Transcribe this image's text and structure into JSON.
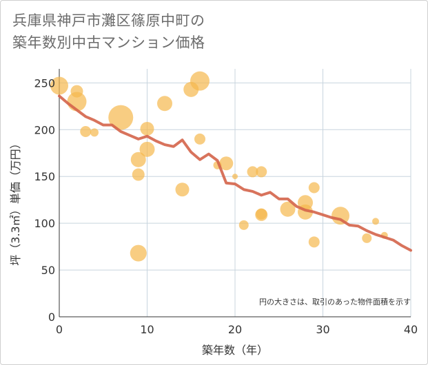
{
  "title_lines": [
    "兵庫県神戸市灘区篠原中町の",
    "築年数別中古マンション価格"
  ],
  "chart_data": {
    "type": "scatter",
    "xlabel": "築年数（年）",
    "ylabel": "坪（3.3㎡）単価（万円）",
    "xlim": [
      0,
      40
    ],
    "ylim": [
      0,
      265
    ],
    "x_ticks": [
      0,
      10,
      20,
      30,
      40
    ],
    "y_ticks": [
      0,
      50,
      100,
      150,
      200,
      250
    ],
    "grid": true,
    "note": "円の大きさは、取引のあった物件面積を示す",
    "colors": {
      "bubble": "#f5b84d",
      "trend": "#d4644a",
      "grid": "#c8d4de"
    },
    "points": [
      {
        "x": 0,
        "y": 247,
        "r": 13
      },
      {
        "x": 2,
        "y": 241,
        "r": 9
      },
      {
        "x": 2,
        "y": 230,
        "r": 14
      },
      {
        "x": 3,
        "y": 198,
        "r": 8
      },
      {
        "x": 4,
        "y": 197,
        "r": 6
      },
      {
        "x": 7,
        "y": 213,
        "r": 18
      },
      {
        "x": 9,
        "y": 168,
        "r": 11
      },
      {
        "x": 9,
        "y": 152,
        "r": 9
      },
      {
        "x": 9,
        "y": 68,
        "r": 12
      },
      {
        "x": 10,
        "y": 201,
        "r": 10
      },
      {
        "x": 10,
        "y": 179,
        "r": 11
      },
      {
        "x": 12,
        "y": 228,
        "r": 11
      },
      {
        "x": 14,
        "y": 136,
        "r": 10
      },
      {
        "x": 15,
        "y": 243,
        "r": 11
      },
      {
        "x": 16,
        "y": 252,
        "r": 14
      },
      {
        "x": 16,
        "y": 190,
        "r": 8
      },
      {
        "x": 18,
        "y": 162,
        "r": 6
      },
      {
        "x": 19,
        "y": 164,
        "r": 10
      },
      {
        "x": 20,
        "y": 150,
        "r": 4
      },
      {
        "x": 21,
        "y": 98,
        "r": 7
      },
      {
        "x": 22,
        "y": 155,
        "r": 8
      },
      {
        "x": 23,
        "y": 155,
        "r": 8
      },
      {
        "x": 23,
        "y": 110,
        "r": 8
      },
      {
        "x": 23,
        "y": 109,
        "r": 9
      },
      {
        "x": 26,
        "y": 115,
        "r": 11
      },
      {
        "x": 28,
        "y": 122,
        "r": 11
      },
      {
        "x": 28,
        "y": 112,
        "r": 11
      },
      {
        "x": 29,
        "y": 138,
        "r": 8
      },
      {
        "x": 29,
        "y": 80,
        "r": 8
      },
      {
        "x": 32,
        "y": 108,
        "r": 13
      },
      {
        "x": 35,
        "y": 84,
        "r": 7
      },
      {
        "x": 36,
        "y": 102,
        "r": 5
      },
      {
        "x": 37,
        "y": 87,
        "r": 5
      }
    ],
    "trend": {
      "x": [
        0,
        1,
        2,
        3,
        4,
        5,
        6,
        7,
        8,
        9,
        10,
        11,
        12,
        13,
        14,
        15,
        16,
        17,
        18,
        19,
        20,
        21,
        22,
        23,
        24,
        25,
        26,
        27,
        28,
        29,
        30,
        31,
        32,
        33,
        34,
        35,
        36,
        37,
        38,
        39,
        40
      ],
      "y": [
        236,
        228,
        221,
        214,
        210,
        205,
        205,
        198,
        194,
        190,
        193,
        188,
        184,
        182,
        189,
        176,
        168,
        174,
        167,
        143,
        142,
        136,
        134,
        130,
        133,
        126,
        126,
        118,
        114,
        112,
        109,
        106,
        104,
        98,
        97,
        92,
        88,
        85,
        82,
        76,
        71
      ]
    }
  }
}
